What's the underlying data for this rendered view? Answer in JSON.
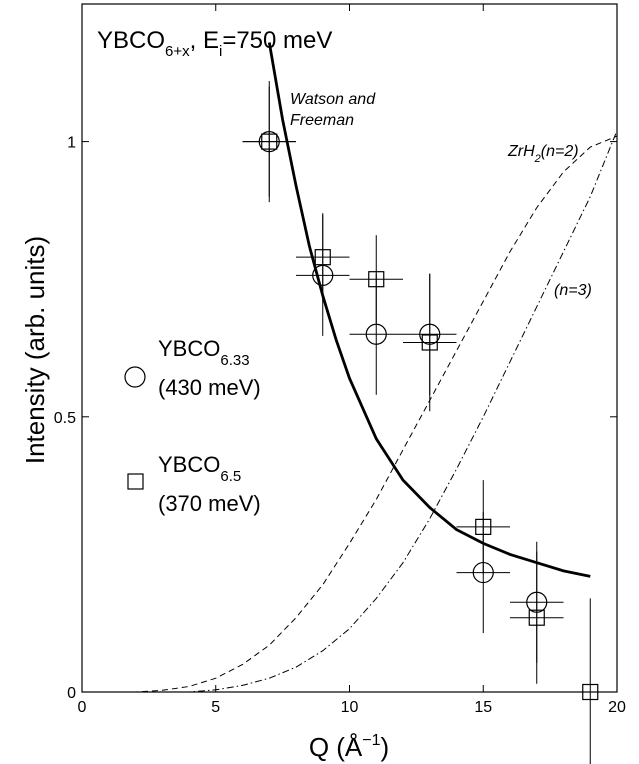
{
  "chart_data": {
    "type": "scatter",
    "title": {
      "main": "YBCO",
      "sub": "6+x",
      "mid": ", E",
      "mid_sub": "i",
      "tail": "=750 meV"
    },
    "xlabel": {
      "main": "Q (Å",
      "sup": "−1",
      "tail": ")"
    },
    "ylabel": "Intensity (arb. units)",
    "xlim": [
      0,
      20
    ],
    "ylim": [
      0,
      1.25
    ],
    "x_ticks": [
      0,
      5,
      10,
      15,
      20
    ],
    "x_tick_labels": [
      "0",
      "5",
      "10",
      "15",
      "20"
    ],
    "y_ticks": [
      0,
      0.5,
      1
    ],
    "y_tick_labels": [
      "0",
      "0.5",
      "1"
    ],
    "series": [
      {
        "name": "YBCO6.33 (430 meV)",
        "legend": {
          "main": "YBCO",
          "sub": "6.33",
          "line2": "(430 meV)"
        },
        "marker": "circle",
        "points": [
          {
            "x": 7,
            "y": 1.0,
            "xerr": 1.0,
            "yerr": 0.11
          },
          {
            "x": 9,
            "y": 0.757,
            "xerr": 1.0,
            "yerr": 0.11
          },
          {
            "x": 11,
            "y": 0.65,
            "xerr": 1.0,
            "yerr": 0.11
          },
          {
            "x": 13,
            "y": 0.65,
            "xerr": 1.0,
            "yerr": 0.11
          },
          {
            "x": 15,
            "y": 0.217,
            "xerr": 1.0,
            "yerr": 0.11
          },
          {
            "x": 17,
            "y": 0.163,
            "xerr": 1.0,
            "yerr": 0.11
          }
        ]
      },
      {
        "name": "YBCO6.5 (370 meV)",
        "legend": {
          "main": "YBCO",
          "sub": "6.5",
          "line2": "(370 meV)"
        },
        "marker": "square",
        "points": [
          {
            "x": 7,
            "y": 1.0,
            "xerr": 1.0,
            "yerr": 0.1
          },
          {
            "x": 9,
            "y": 0.79,
            "xerr": 1.0,
            "yerr": 0.08
          },
          {
            "x": 11,
            "y": 0.75,
            "xerr": 1.0,
            "yerr": 0.08
          },
          {
            "x": 13,
            "y": 0.635,
            "xerr": 1.0,
            "yerr": 0.125
          },
          {
            "x": 15,
            "y": 0.3,
            "xerr": 1.0,
            "yerr": 0.085
          },
          {
            "x": 17,
            "y": 0.135,
            "xerr": 1.0,
            "yerr": 0.12
          },
          {
            "x": 19,
            "y": 0.0,
            "xerr": 0,
            "yerr": 0.17
          }
        ]
      }
    ],
    "curves": [
      {
        "label": {
          "main": "Watson and",
          "line2": "Freeman"
        },
        "style": "solid",
        "x": [
          7,
          7.5,
          8,
          8.5,
          9,
          9.5,
          10,
          11,
          12,
          13,
          14,
          15,
          16,
          17,
          18,
          19
        ],
        "y": [
          1.18,
          1.04,
          0.92,
          0.81,
          0.72,
          0.64,
          0.57,
          0.46,
          0.385,
          0.335,
          0.295,
          0.27,
          0.25,
          0.235,
          0.22,
          0.21
        ]
      },
      {
        "label": {
          "main": "ZrH",
          "sub": "2",
          "tail": "(n=2)"
        },
        "style": "dashed",
        "x": [
          0,
          2,
          3,
          4,
          5,
          6,
          7,
          8,
          9,
          10,
          11,
          12,
          13,
          14,
          15,
          16,
          17,
          18,
          19,
          20
        ],
        "y": [
          0,
          0.0,
          0.003,
          0.01,
          0.025,
          0.05,
          0.085,
          0.135,
          0.195,
          0.27,
          0.35,
          0.44,
          0.53,
          0.62,
          0.71,
          0.8,
          0.88,
          0.945,
          0.99,
          1.01
        ]
      },
      {
        "label": {
          "main": "(n=3)"
        },
        "style": "dashdot",
        "x": [
          0,
          4,
          5,
          6,
          7,
          8,
          9,
          10,
          11,
          12,
          13,
          14,
          15,
          16,
          17,
          18,
          19,
          20
        ],
        "y": [
          0,
          0.0,
          0.004,
          0.012,
          0.025,
          0.045,
          0.075,
          0.115,
          0.17,
          0.235,
          0.315,
          0.405,
          0.5,
          0.6,
          0.7,
          0.8,
          0.9,
          1.02
        ]
      }
    ]
  }
}
